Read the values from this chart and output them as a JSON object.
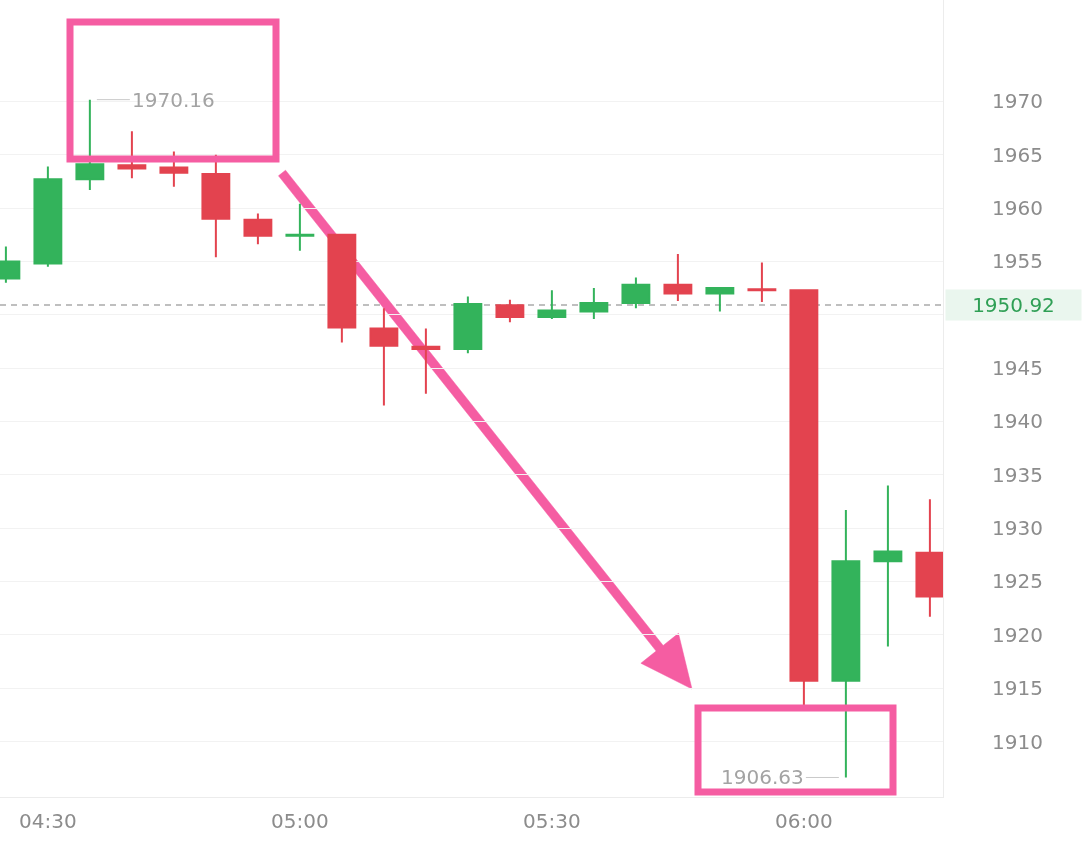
{
  "chart_data": {
    "type": "candlestick",
    "x": [
      4.4167,
      4.5,
      4.5833,
      4.6667,
      4.75,
      4.8333,
      4.9167,
      5,
      5.0833,
      5.1667,
      5.25,
      5.3333,
      5.4167,
      5.5,
      5.5833,
      5.6667,
      5.75,
      5.8333,
      5.9167,
      6,
      6.0833,
      6.1667,
      6.25
    ],
    "ohlc": [
      [
        1953.4,
        1956.4,
        1953.0,
        1955.0
      ],
      [
        1954.8,
        1963.9,
        1954.5,
        1962.7
      ],
      [
        1962.7,
        1970.16,
        1961.7,
        1964.1
      ],
      [
        1964.0,
        1967.2,
        1962.8,
        1963.7
      ],
      [
        1963.8,
        1965.3,
        1962.0,
        1963.3
      ],
      [
        1963.2,
        1965.0,
        1955.4,
        1959.0
      ],
      [
        1958.9,
        1959.5,
        1956.6,
        1957.4
      ],
      [
        1957.4,
        1960.4,
        1956.0,
        1957.5
      ],
      [
        1957.5,
        1957.5,
        1947.4,
        1948.8
      ],
      [
        1948.7,
        1950.6,
        1941.5,
        1947.1
      ],
      [
        1947.0,
        1948.7,
        1942.6,
        1946.8
      ],
      [
        1946.8,
        1951.7,
        1946.4,
        1951.0
      ],
      [
        1950.9,
        1951.4,
        1949.3,
        1949.8
      ],
      [
        1949.8,
        1952.3,
        1949.6,
        1950.4
      ],
      [
        1950.3,
        1952.5,
        1949.6,
        1951.1
      ],
      [
        1951.1,
        1953.5,
        1950.6,
        1952.8
      ],
      [
        1952.8,
        1955.7,
        1951.3,
        1952.0
      ],
      [
        1952.0,
        1952.6,
        1950.3,
        1952.5
      ],
      [
        1952.4,
        1954.9,
        1951.2,
        1952.3
      ],
      [
        1952.3,
        1952.3,
        1913.3,
        1915.7
      ],
      [
        1915.7,
        1931.7,
        1906.63,
        1926.9
      ],
      [
        1926.9,
        1934.0,
        1918.9,
        1927.8
      ],
      [
        1927.7,
        1932.7,
        1921.7,
        1923.6
      ]
    ],
    "colors": [
      "#33b35b",
      "#33b35b",
      "#33b35b",
      "#e3434f",
      "#e3434f",
      "#e3434f",
      "#e3434f",
      "#33b35b",
      "#e3434f",
      "#e3434f",
      "#e3434f",
      "#33b35b",
      "#e3434f",
      "#33b35b",
      "#33b35b",
      "#33b35b",
      "#e3434f",
      "#33b35b",
      "#e3434f",
      "#e3434f",
      "#33b35b",
      "#33b35b",
      "#e3434f"
    ],
    "xlim": [
      4.405,
      6.276
    ],
    "xticks": [
      {
        "value": 4.5,
        "label": "04:30"
      },
      {
        "value": 5,
        "label": "05:00"
      },
      {
        "value": 5.5,
        "label": "05:30"
      },
      {
        "value": 6,
        "label": "06:00"
      }
    ],
    "ylim": [
      1904.8,
      1979.5
    ],
    "yticks": [
      1910,
      1915,
      1920,
      1925,
      1930,
      1935,
      1940,
      1945,
      {
        "value": 1950,
        "label": null
      },
      1955,
      1960,
      1965,
      1970
    ],
    "grid": "y",
    "ref_lines": [
      {
        "axis": "y",
        "value": 1950.92,
        "label": "1950.92",
        "color": "#ababab",
        "line_style": "dashed"
      }
    ],
    "annotations": [
      {
        "text": "1970.16",
        "x": 4.5833,
        "y": 1970.16
      },
      {
        "text": "1906.63",
        "x": 6.0833,
        "y": 1906.63
      }
    ]
  }
}
